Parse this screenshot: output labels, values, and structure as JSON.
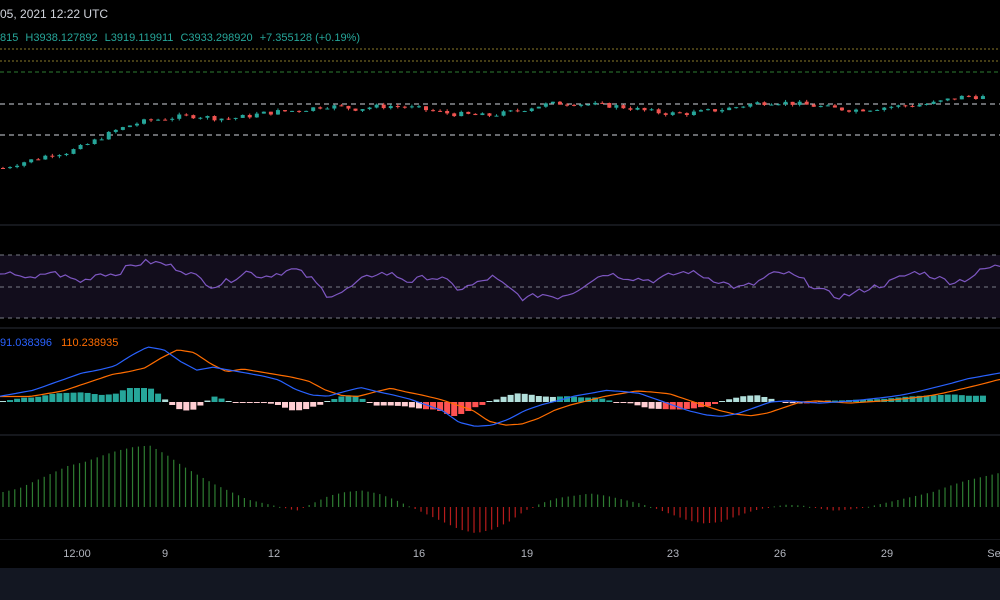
{
  "header": {
    "title": "05, 2021 12:22 UTC"
  },
  "ohlc": {
    "open_partial": "815",
    "high": "H3938.127892",
    "low": "L3919.119911",
    "close": "C3933.298920",
    "change": "+7.355128 (+0.19%)"
  },
  "macd": {
    "value_macd": "91.038396",
    "value_signal": "110.238935"
  },
  "colors": {
    "up": "#26a69a",
    "down": "#ef5350",
    "rsi": "#7e57c2",
    "macd_line": "#2962ff",
    "signal_line": "#ff6d00",
    "hist_up_strong": "#26a69a",
    "hist_up_weak": "#b2dfdb",
    "hist_down_strong": "#ff5252",
    "hist_down_weak": "#ffcdd2",
    "osc_up": "#2e7d32",
    "osc_down": "#b71c1c"
  },
  "chart_data": {
    "type": "candlestick",
    "x_ticks": [
      "12:00",
      "9",
      "12",
      "16",
      "19",
      "23",
      "26",
      "29",
      "Se"
    ],
    "panels": [
      "price",
      "rsi",
      "macd",
      "oscillator"
    ],
    "price_close_shape": [
      0.0,
      0.05,
      0.09,
      0.14,
      0.16,
      0.22,
      0.3,
      0.38,
      0.44,
      0.48,
      0.5,
      0.52,
      0.53,
      0.51,
      0.5,
      0.52,
      0.55,
      0.57,
      0.58,
      0.6,
      0.63,
      0.62,
      0.6,
      0.62,
      0.63,
      0.62,
      0.6,
      0.57,
      0.55,
      0.54,
      0.53,
      0.55,
      0.58,
      0.62,
      0.65,
      0.66,
      0.65,
      0.64,
      0.63,
      0.61,
      0.58,
      0.56,
      0.55,
      0.56,
      0.58,
      0.6,
      0.63,
      0.66,
      0.67,
      0.66,
      0.64,
      0.62,
      0.6,
      0.59,
      0.6,
      0.62,
      0.63,
      0.64,
      0.66,
      0.7,
      0.73,
      0.72
    ],
    "rsi_shape": [
      0.55,
      0.6,
      0.5,
      0.62,
      0.55,
      0.48,
      0.6,
      0.58,
      0.7,
      0.75,
      0.72,
      0.65,
      0.55,
      0.42,
      0.5,
      0.62,
      0.55,
      0.6,
      0.65,
      0.52,
      0.3,
      0.35,
      0.5,
      0.6,
      0.58,
      0.48,
      0.55,
      0.52,
      0.38,
      0.45,
      0.55,
      0.4,
      0.25,
      0.32,
      0.28,
      0.35,
      0.5,
      0.6,
      0.55,
      0.52,
      0.5,
      0.58,
      0.62,
      0.55,
      0.48,
      0.4,
      0.45,
      0.58,
      0.6,
      0.5,
      0.38,
      0.28,
      0.32,
      0.4,
      0.45,
      0.55,
      0.62,
      0.55,
      0.48,
      0.52,
      0.65,
      0.7
    ],
    "macd_shape": [
      0.1,
      0.15,
      0.2,
      0.3,
      0.4,
      0.5,
      0.55,
      0.62,
      0.8,
      0.95,
      0.9,
      0.7,
      0.55,
      0.6,
      0.55,
      0.5,
      0.45,
      0.38,
      0.22,
      0.12,
      0.1,
      0.18,
      0.25,
      0.18,
      0.12,
      0.05,
      -0.05,
      -0.15,
      -0.35,
      -0.42,
      -0.4,
      -0.3,
      -0.15,
      -0.05,
      0.02,
      0.1,
      0.15,
      0.2,
      0.18,
      0.15,
      0.05,
      -0.05,
      -0.15,
      -0.22,
      -0.25,
      -0.2,
      -0.1,
      0.0,
      0.02,
      0.0,
      -0.02,
      0.0,
      0.02,
      0.05,
      0.08,
      0.12,
      0.18,
      0.25,
      0.32,
      0.4,
      0.45,
      0.5
    ],
    "oscillator_shape": [
      0.2,
      0.25,
      0.35,
      0.45,
      0.55,
      0.6,
      0.68,
      0.75,
      0.8,
      0.82,
      0.7,
      0.55,
      0.42,
      0.3,
      0.2,
      0.1,
      0.05,
      0.0,
      -0.05,
      0.05,
      0.15,
      0.2,
      0.22,
      0.18,
      0.1,
      0.0,
      -0.1,
      -0.2,
      -0.3,
      -0.35,
      -0.3,
      -0.2,
      -0.05,
      0.05,
      0.12,
      0.15,
      0.18,
      0.15,
      0.1,
      0.05,
      -0.02,
      -0.1,
      -0.18,
      -0.22,
      -0.2,
      -0.12,
      -0.05,
      0.0,
      0.03,
      0.02,
      -0.02,
      -0.05,
      -0.03,
      0.0,
      0.05,
      0.1,
      0.15,
      0.2,
      0.28,
      0.35,
      0.4,
      0.45
    ]
  }
}
